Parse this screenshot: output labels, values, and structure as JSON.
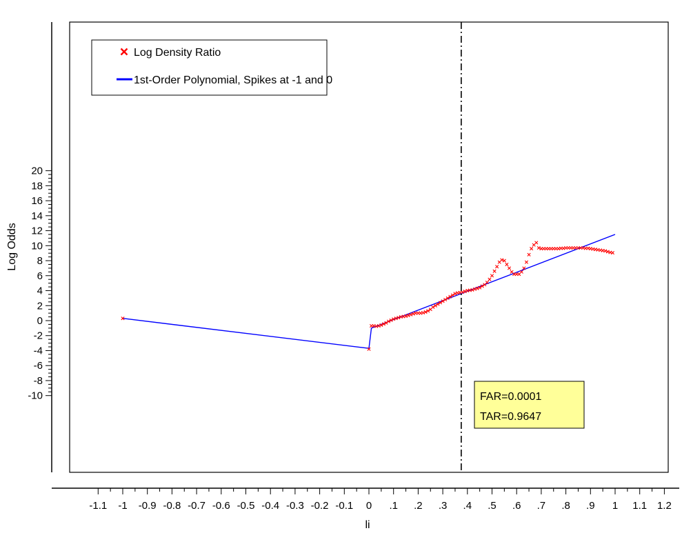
{
  "chart_data": {
    "type": "scatter",
    "xlabel": "li",
    "ylabel": "Log Odds",
    "xlim": [
      -1.2,
      1.25
    ],
    "ylim": [
      -10,
      20
    ],
    "x_ticks": [
      "-1.1",
      "-1",
      "-0.9",
      "-0.8",
      "-0.7",
      "-0.6",
      "-0.5",
      "-0.4",
      "-0.3",
      "-0.2",
      "-0.1",
      "0",
      ".1",
      ".2",
      ".3",
      ".4",
      ".5",
      ".6",
      ".7",
      ".8",
      ".9",
      "1",
      "1.1",
      "1.2"
    ],
    "x_tick_values": [
      -1.1,
      -1,
      -0.9,
      -0.8,
      -0.7,
      -0.6,
      -0.5,
      -0.4,
      -0.3,
      -0.2,
      -0.1,
      0,
      0.1,
      0.2,
      0.3,
      0.4,
      0.5,
      0.6,
      0.7,
      0.8,
      0.9,
      1,
      1.1,
      1.2
    ],
    "y_ticks": [
      "-10",
      "-8",
      "-6",
      "-4",
      "-2",
      "0",
      "2",
      "4",
      "6",
      "8",
      "10",
      "12",
      "14",
      "16",
      "18",
      "20"
    ],
    "y_tick_values": [
      -10,
      -8,
      -6,
      -4,
      -2,
      0,
      2,
      4,
      6,
      8,
      10,
      12,
      14,
      16,
      18,
      20
    ],
    "legend": {
      "placement": "top-left",
      "entries": [
        {
          "label": "Log Density Ratio",
          "marker": "x",
          "color": "#ff0000"
        },
        {
          "label": "1st-Order Polynomial, Spikes at -1 and 0",
          "marker": "line",
          "color": "#0000ff"
        }
      ]
    },
    "series": [
      {
        "name": "Log Density Ratio",
        "marker": "x",
        "color": "#ff0000",
        "points": [
          [
            -1,
            0.3
          ],
          [
            0,
            -3.8
          ],
          [
            0.01,
            -0.7
          ],
          [
            0.02,
            -0.7
          ],
          [
            0.03,
            -0.75
          ],
          [
            0.04,
            -0.7
          ],
          [
            0.05,
            -0.6
          ],
          [
            0.06,
            -0.45
          ],
          [
            0.07,
            -0.3
          ],
          [
            0.08,
            -0.1
          ],
          [
            0.09,
            0.05
          ],
          [
            0.1,
            0.2
          ],
          [
            0.11,
            0.3
          ],
          [
            0.12,
            0.4
          ],
          [
            0.13,
            0.5
          ],
          [
            0.14,
            0.55
          ],
          [
            0.15,
            0.6
          ],
          [
            0.16,
            0.7
          ],
          [
            0.17,
            0.8
          ],
          [
            0.18,
            0.9
          ],
          [
            0.19,
            1.0
          ],
          [
            0.2,
            1.0
          ],
          [
            0.21,
            1.0
          ],
          [
            0.22,
            1.05
          ],
          [
            0.23,
            1.15
          ],
          [
            0.24,
            1.3
          ],
          [
            0.25,
            1.5
          ],
          [
            0.26,
            1.8
          ],
          [
            0.27,
            2.0
          ],
          [
            0.28,
            2.2
          ],
          [
            0.29,
            2.4
          ],
          [
            0.3,
            2.6
          ],
          [
            0.31,
            2.8
          ],
          [
            0.32,
            3.0
          ],
          [
            0.33,
            3.2
          ],
          [
            0.34,
            3.4
          ],
          [
            0.35,
            3.6
          ],
          [
            0.36,
            3.7
          ],
          [
            0.37,
            3.75
          ],
          [
            0.38,
            3.8
          ],
          [
            0.39,
            3.9
          ],
          [
            0.4,
            4.0
          ],
          [
            0.41,
            4.05
          ],
          [
            0.42,
            4.1
          ],
          [
            0.43,
            4.2
          ],
          [
            0.44,
            4.3
          ],
          [
            0.45,
            4.4
          ],
          [
            0.46,
            4.6
          ],
          [
            0.47,
            4.8
          ],
          [
            0.48,
            5.1
          ],
          [
            0.49,
            5.5
          ],
          [
            0.5,
            6.0
          ],
          [
            0.51,
            6.6
          ],
          [
            0.52,
            7.2
          ],
          [
            0.53,
            7.8
          ],
          [
            0.54,
            8.1
          ],
          [
            0.55,
            8.0
          ],
          [
            0.56,
            7.5
          ],
          [
            0.57,
            7.0
          ],
          [
            0.58,
            6.5
          ],
          [
            0.59,
            6.2
          ],
          [
            0.6,
            6.2
          ],
          [
            0.61,
            6.2
          ],
          [
            0.62,
            6.5
          ],
          [
            0.63,
            7.0
          ],
          [
            0.64,
            7.8
          ],
          [
            0.65,
            8.8
          ],
          [
            0.66,
            9.6
          ],
          [
            0.67,
            10.1
          ],
          [
            0.68,
            10.4
          ],
          [
            0.69,
            9.7
          ],
          [
            0.7,
            9.6
          ],
          [
            0.71,
            9.6
          ],
          [
            0.72,
            9.6
          ],
          [
            0.73,
            9.6
          ],
          [
            0.74,
            9.6
          ],
          [
            0.75,
            9.6
          ],
          [
            0.76,
            9.6
          ],
          [
            0.77,
            9.6
          ],
          [
            0.78,
            9.65
          ],
          [
            0.79,
            9.65
          ],
          [
            0.8,
            9.7
          ],
          [
            0.81,
            9.7
          ],
          [
            0.82,
            9.7
          ],
          [
            0.83,
            9.7
          ],
          [
            0.84,
            9.7
          ],
          [
            0.85,
            9.7
          ],
          [
            0.86,
            9.7
          ],
          [
            0.87,
            9.7
          ],
          [
            0.88,
            9.65
          ],
          [
            0.89,
            9.65
          ],
          [
            0.9,
            9.6
          ],
          [
            0.91,
            9.55
          ],
          [
            0.92,
            9.5
          ],
          [
            0.93,
            9.45
          ],
          [
            0.94,
            9.4
          ],
          [
            0.95,
            9.35
          ],
          [
            0.96,
            9.3
          ],
          [
            0.97,
            9.2
          ],
          [
            0.98,
            9.1
          ],
          [
            0.99,
            9.05
          ]
        ]
      },
      {
        "name": "1st-Order Polynomial, Spikes at -1 and 0",
        "marker": "line",
        "color": "#0000ff",
        "points": [
          [
            -1,
            0.3
          ],
          [
            0,
            -3.7
          ],
          [
            0.01,
            -1.0
          ],
          [
            1.0,
            11.5
          ]
        ]
      }
    ],
    "reference_line": {
      "x": 0.375,
      "style": "dash-dot",
      "color": "#000000"
    },
    "annotation": {
      "lines": [
        "FAR=0.0001",
        "TAR=0.9647"
      ],
      "background": "#ffff99",
      "placement": "lower-right"
    },
    "grid": false
  }
}
